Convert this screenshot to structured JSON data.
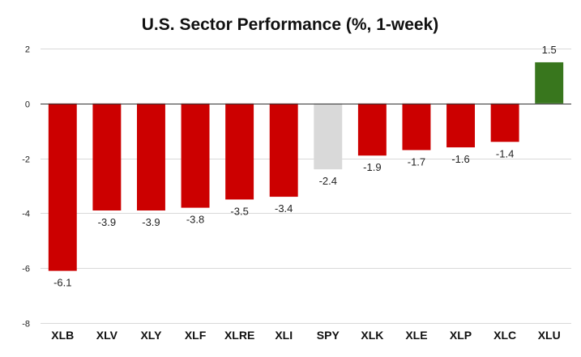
{
  "chart_data": {
    "type": "bar",
    "title": "U.S. Sector Performance (%, 1-week)",
    "xlabel": "",
    "ylabel": "",
    "ylim": [
      -8,
      2
    ],
    "yticks": [
      2,
      0,
      -2,
      -4,
      -6,
      -8
    ],
    "grid": true,
    "categories": [
      "XLB",
      "XLV",
      "XLY",
      "XLF",
      "XLRE",
      "XLI",
      "SPY",
      "XLK",
      "XLE",
      "XLP",
      "XLC",
      "XLU"
    ],
    "values": [
      -6.1,
      -3.9,
      -3.9,
      -3.8,
      -3.5,
      -3.4,
      -2.4,
      -1.9,
      -1.7,
      -1.6,
      -1.4,
      1.5
    ],
    "data_labels": [
      "-6.1",
      "-3.9",
      "-3.9",
      "-3.8",
      "-3.5",
      "-3.4",
      "-2.4",
      "-1.9",
      "-1.7",
      "-1.6",
      "-1.4",
      "1.5"
    ],
    "colors": {
      "negative": "#cc0000",
      "positive": "#38761d",
      "benchmark": "#d9d9d9"
    },
    "benchmark": "SPY"
  }
}
